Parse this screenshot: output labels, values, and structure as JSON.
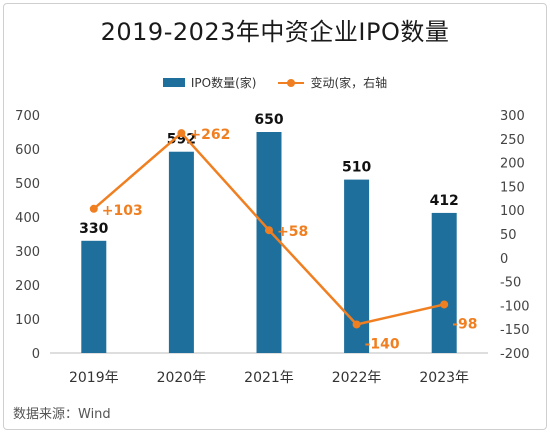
{
  "chart_data": {
    "type": "bar",
    "title": "2019-2023年中资企业IPO数量",
    "categories": [
      "2019年",
      "2020年",
      "2021年",
      "2022年",
      "2023年"
    ],
    "series": [
      {
        "name": "IPO数量(家)",
        "type": "bar",
        "axis": "left",
        "color": "#1f6f9c",
        "values": [
          330,
          592,
          650,
          510,
          412
        ],
        "labels": [
          "330",
          "592",
          "650",
          "510",
          "412"
        ]
      },
      {
        "name": "变动(家，右轴",
        "type": "line",
        "axis": "right",
        "color": "#f07f21",
        "values": [
          103,
          262,
          58,
          -140,
          -98
        ],
        "labels": [
          "+103",
          "+262",
          "+58",
          "-140",
          "-98"
        ]
      }
    ],
    "ylim_left": [
      0,
      700
    ],
    "yticks_left": [
      "0",
      "100",
      "200",
      "300",
      "400",
      "500",
      "600",
      "700"
    ],
    "ylim_right": [
      -200,
      300
    ],
    "yticks_right": [
      "-200",
      "-150",
      "-100",
      "-50",
      "0",
      "50",
      "100",
      "150",
      "200",
      "250",
      "300"
    ],
    "grid": false,
    "legend_position": "top-center"
  },
  "source": "数据来源：Wind"
}
